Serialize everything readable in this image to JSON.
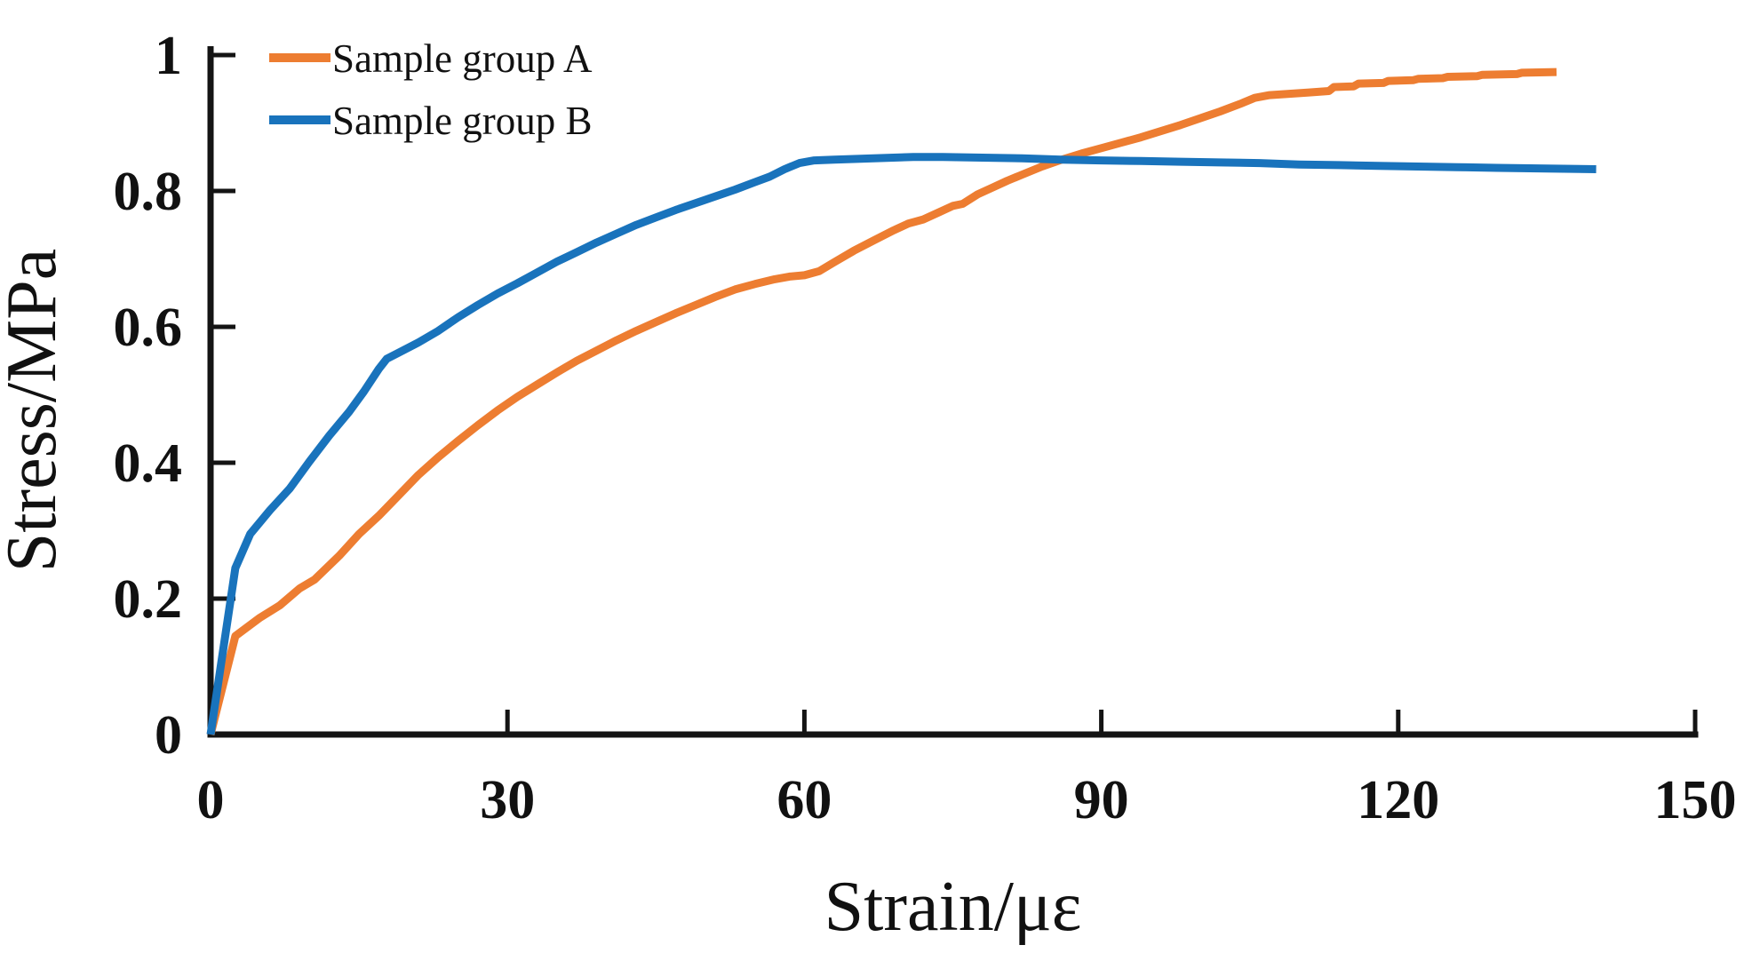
{
  "figure": {
    "background_color": "#ffffff",
    "axis_color": "#141414",
    "text_color": "#111111"
  },
  "chart_data": {
    "type": "line",
    "title": "",
    "xlabel": "Strain/με",
    "ylabel": "Stress/MPa",
    "xlim": [
      0,
      150
    ],
    "ylim": [
      0,
      1
    ],
    "x_ticks": [
      0,
      30,
      60,
      90,
      120,
      150
    ],
    "x_tick_labels": [
      "0",
      "30",
      "60",
      "90",
      "120",
      "150"
    ],
    "y_ticks": [
      0,
      0.2,
      0.4,
      0.6,
      0.8,
      1
    ],
    "y_tick_labels": [
      "0",
      "0.2",
      "0.4",
      "0.6",
      "0.8",
      "1"
    ],
    "grid": false,
    "legend_position": "top-left",
    "series": [
      {
        "name": "Sample group A",
        "color": "#ED7D31",
        "points": [
          [
            0,
            0
          ],
          [
            2.5,
            0.145
          ],
          [
            5,
            0.172
          ],
          [
            7,
            0.19
          ],
          [
            9,
            0.215
          ],
          [
            10.5,
            0.228
          ],
          [
            13,
            0.263
          ],
          [
            15,
            0.295
          ],
          [
            17,
            0.322
          ],
          [
            19,
            0.352
          ],
          [
            21,
            0.382
          ],
          [
            23,
            0.408
          ],
          [
            25,
            0.432
          ],
          [
            27,
            0.455
          ],
          [
            29,
            0.477
          ],
          [
            31,
            0.497
          ],
          [
            33,
            0.515
          ],
          [
            35,
            0.533
          ],
          [
            37,
            0.55
          ],
          [
            39,
            0.565
          ],
          [
            41,
            0.58
          ],
          [
            43,
            0.594
          ],
          [
            45,
            0.607
          ],
          [
            47,
            0.62
          ],
          [
            49,
            0.632
          ],
          [
            51,
            0.644
          ],
          [
            53,
            0.655
          ],
          [
            55,
            0.663
          ],
          [
            57,
            0.67
          ],
          [
            58.5,
            0.674
          ],
          [
            60,
            0.676
          ],
          [
            61.5,
            0.682
          ],
          [
            63,
            0.695
          ],
          [
            65,
            0.712
          ],
          [
            67,
            0.727
          ],
          [
            69,
            0.742
          ],
          [
            70.5,
            0.752
          ],
          [
            72,
            0.758
          ],
          [
            73.5,
            0.768
          ],
          [
            75,
            0.778
          ],
          [
            76,
            0.781
          ],
          [
            77.5,
            0.795
          ],
          [
            79,
            0.805
          ],
          [
            80.5,
            0.815
          ],
          [
            82,
            0.824
          ],
          [
            84,
            0.836
          ],
          [
            86,
            0.846
          ],
          [
            88,
            0.855
          ],
          [
            90,
            0.863
          ],
          [
            92,
            0.871
          ],
          [
            94,
            0.879
          ],
          [
            96,
            0.888
          ],
          [
            98,
            0.897
          ],
          [
            100,
            0.907
          ],
          [
            102,
            0.917
          ],
          [
            104,
            0.928
          ],
          [
            105.5,
            0.937
          ],
          [
            107,
            0.941
          ],
          [
            109,
            0.943
          ],
          [
            111,
            0.945
          ],
          [
            113,
            0.947
          ],
          [
            113.5,
            0.953
          ],
          [
            115.5,
            0.954
          ],
          [
            116,
            0.958
          ],
          [
            118.5,
            0.959
          ],
          [
            119,
            0.962
          ],
          [
            121.5,
            0.963
          ],
          [
            122,
            0.965
          ],
          [
            124.5,
            0.966
          ],
          [
            125,
            0.968
          ],
          [
            128,
            0.969
          ],
          [
            128.5,
            0.971
          ],
          [
            132,
            0.972
          ],
          [
            132.5,
            0.974
          ],
          [
            136,
            0.975
          ]
        ]
      },
      {
        "name": "Sample group B",
        "color": "#1973BC",
        "points": [
          [
            0,
            0
          ],
          [
            2.5,
            0.245
          ],
          [
            4,
            0.295
          ],
          [
            6,
            0.33
          ],
          [
            8,
            0.362
          ],
          [
            10,
            0.402
          ],
          [
            12,
            0.44
          ],
          [
            14,
            0.475
          ],
          [
            15.5,
            0.505
          ],
          [
            17,
            0.538
          ],
          [
            17.8,
            0.553
          ],
          [
            19,
            0.562
          ],
          [
            21,
            0.577
          ],
          [
            23,
            0.594
          ],
          [
            25,
            0.614
          ],
          [
            27,
            0.632
          ],
          [
            29,
            0.649
          ],
          [
            31,
            0.664
          ],
          [
            33,
            0.68
          ],
          [
            35,
            0.696
          ],
          [
            37,
            0.71
          ],
          [
            39,
            0.724
          ],
          [
            41,
            0.737
          ],
          [
            43,
            0.75
          ],
          [
            45,
            0.761
          ],
          [
            47,
            0.772
          ],
          [
            49,
            0.782
          ],
          [
            51,
            0.792
          ],
          [
            53,
            0.802
          ],
          [
            55,
            0.813
          ],
          [
            56.5,
            0.821
          ],
          [
            58,
            0.832
          ],
          [
            59.5,
            0.841
          ],
          [
            61,
            0.845
          ],
          [
            63,
            0.846
          ],
          [
            65,
            0.847
          ],
          [
            67,
            0.848
          ],
          [
            69,
            0.849
          ],
          [
            71,
            0.85
          ],
          [
            74,
            0.85
          ],
          [
            78,
            0.849
          ],
          [
            82,
            0.848
          ],
          [
            86,
            0.846
          ],
          [
            90,
            0.845
          ],
          [
            94,
            0.844
          ],
          [
            98,
            0.843
          ],
          [
            102,
            0.842
          ],
          [
            106,
            0.841
          ],
          [
            110,
            0.839
          ],
          [
            114,
            0.838
          ],
          [
            118,
            0.837
          ],
          [
            122,
            0.836
          ],
          [
            126,
            0.835
          ],
          [
            130,
            0.834
          ],
          [
            135,
            0.833
          ],
          [
            140,
            0.832
          ]
        ]
      }
    ]
  }
}
